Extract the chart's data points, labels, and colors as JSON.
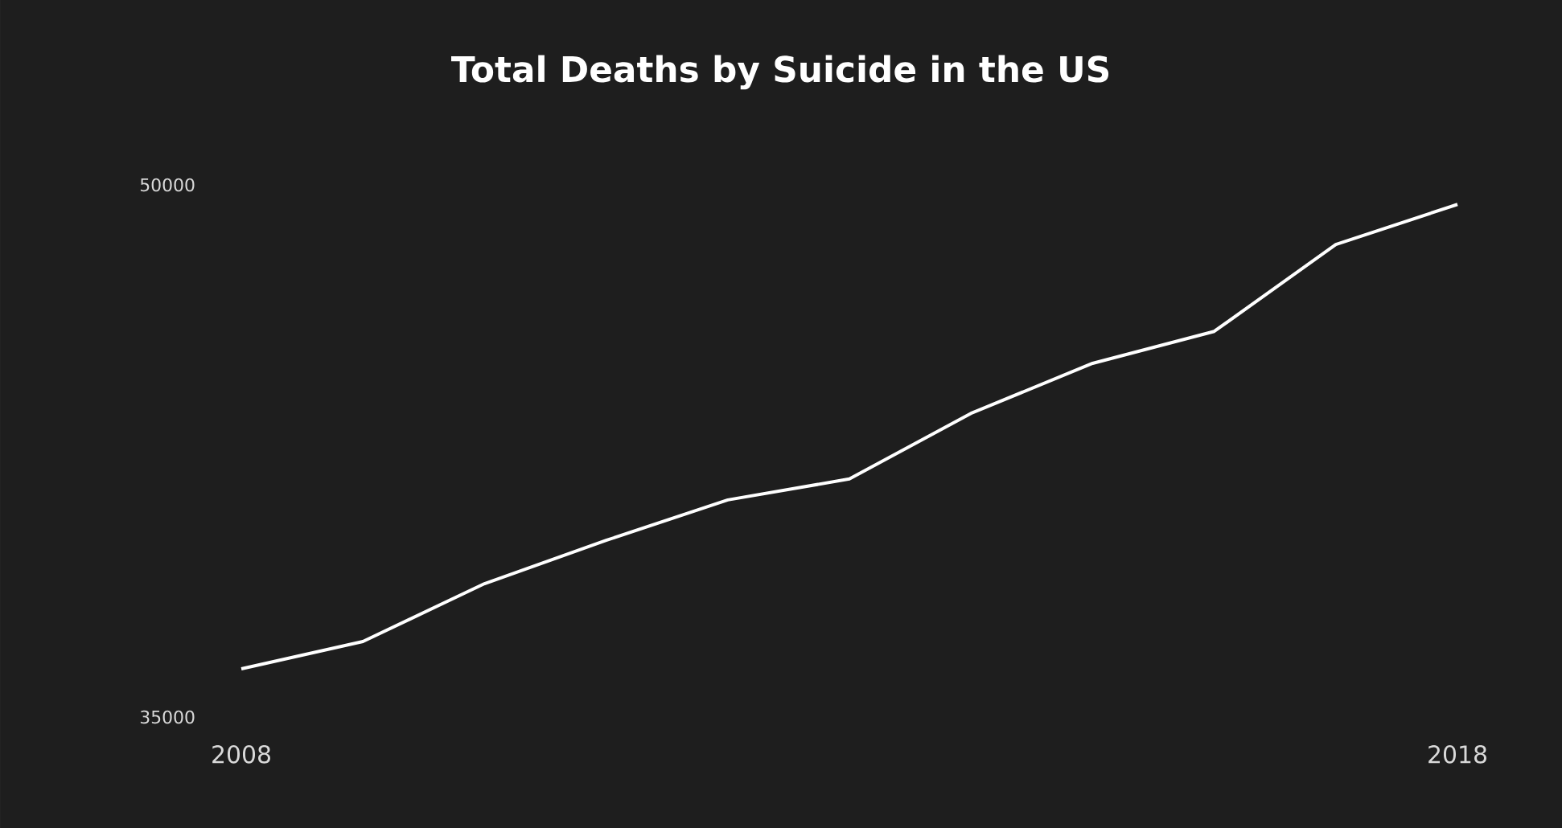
{
  "chart_data": {
    "type": "line",
    "title": "Total Deaths by Suicide in the US",
    "x": [
      2008,
      2009,
      2010,
      2011,
      2012,
      2013,
      2014,
      2015,
      2016,
      2017,
      2018
    ],
    "values": [
      36360,
      37130,
      38760,
      39980,
      41120,
      41710,
      43560,
      44970,
      45870,
      48320,
      49450
    ],
    "color": "#ffffff",
    "marker": "none",
    "line_style": "solid",
    "xlim": [
      2008,
      2018
    ],
    "ylim": [
      35000,
      50000
    ],
    "xticks": [
      2008,
      2018
    ],
    "yticks": [
      35000,
      50000
    ]
  }
}
